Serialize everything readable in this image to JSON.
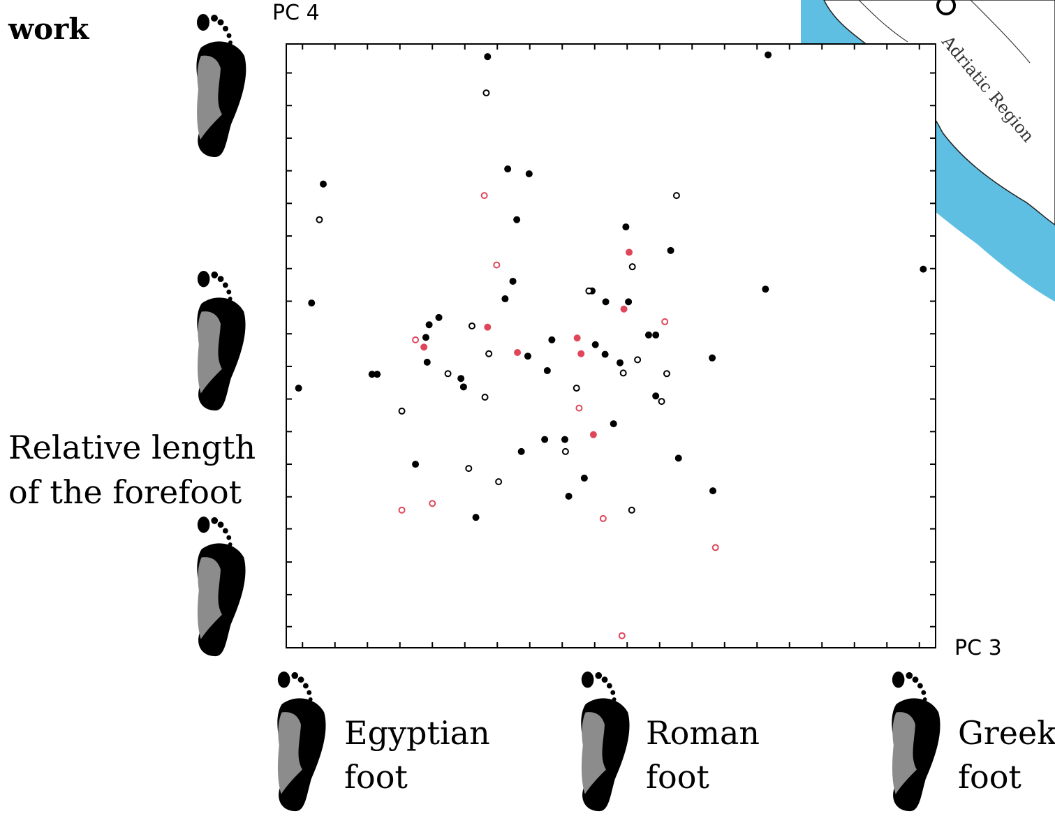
{
  "chart_data": {
    "type": "scatter",
    "heading_fragment": "work",
    "xlabel": "PC 3",
    "ylabel": "PC 4",
    "y_axis_description": [
      "Relative length",
      "of the forefoot"
    ],
    "x_axis_markers": [
      [
        "Egyptian",
        "foot"
      ],
      [
        "Roman",
        "foot"
      ],
      [
        "Greek",
        "foot"
      ]
    ],
    "map_label": "Adriatic Region",
    "xlim": [
      0,
      100
    ],
    "ylim": [
      0,
      100
    ],
    "xticks": [
      2.5,
      7.5,
      12.5,
      17.5,
      22.5,
      27.5,
      32.5,
      37.5,
      42.5,
      47.5,
      52.5,
      57.5,
      62.5,
      67.5,
      72.5,
      77.5,
      82.5,
      87.5,
      92.5,
      97.5
    ],
    "yticks": [
      3.5,
      8.8,
      14.2,
      19.7,
      25.0,
      30.4,
      35.8,
      41.2,
      46.6,
      52.0,
      57.4,
      62.8,
      68.2,
      73.6,
      79.0,
      84.4,
      89.8,
      95.2
    ],
    "series": [
      {
        "color": "#000000",
        "marker": "filled",
        "x": [
          31.0,
          74.2,
          34.1,
          37.4,
          5.7,
          35.5,
          52.3,
          59.2,
          98.1,
          34.9,
          73.8,
          33.7,
          3.9,
          47.1,
          49.2,
          52.7,
          23.5,
          22.0,
          21.5,
          40.9,
          55.8,
          56.9,
          47.6,
          49.1,
          51.4,
          37.2,
          65.6,
          21.7,
          13.2,
          14.0,
          26.9,
          27.3,
          40.2,
          1.9,
          56.9,
          50.4,
          39.8,
          42.9,
          36.2,
          60.4,
          19.9,
          45.9,
          43.5,
          65.7,
          29.2
        ],
        "values": [
          97.9,
          98.2,
          79.3,
          78.5,
          76.8,
          70.9,
          69.7,
          65.8,
          62.7,
          60.7,
          59.4,
          57.8,
          57.1,
          59.1,
          57.3,
          57.3,
          54.7,
          53.5,
          51.4,
          51.0,
          51.8,
          51.8,
          50.2,
          48.6,
          47.2,
          48.3,
          48.0,
          47.3,
          45.3,
          45.3,
          44.6,
          43.2,
          45.9,
          43.0,
          41.7,
          37.1,
          34.5,
          34.5,
          32.5,
          31.4,
          30.4,
          28.1,
          25.1,
          26.0,
          21.6
        ]
      },
      {
        "color": "#000000",
        "marker": "open",
        "x": [
          30.8,
          5.1,
          60.1,
          53.3,
          46.6,
          28.6,
          31.2,
          54.1,
          24.9,
          51.9,
          58.6,
          44.7,
          30.6,
          57.8,
          17.8,
          43.0,
          28.1,
          32.7,
          53.2
        ],
        "values": [
          91.9,
          70.9,
          74.9,
          63.1,
          59.1,
          53.3,
          48.7,
          47.7,
          45.4,
          45.5,
          45.4,
          43.0,
          41.5,
          40.8,
          39.2,
          32.5,
          29.7,
          27.5,
          22.8
        ]
      },
      {
        "color": "#e0465a",
        "marker": "filled",
        "x": [
          52.8,
          52.0,
          31.0,
          21.2,
          35.6,
          44.8,
          45.4,
          47.3
        ],
        "values": [
          65.5,
          56.1,
          53.1,
          49.8,
          48.9,
          51.3,
          48.7,
          35.3
        ]
      },
      {
        "color": "#e0465a",
        "marker": "open",
        "x": [
          30.5,
          32.4,
          19.9,
          58.3,
          45.1,
          17.8,
          22.5,
          48.8,
          66.1,
          51.7
        ],
        "values": [
          74.9,
          63.4,
          51.0,
          54.0,
          39.7,
          22.8,
          23.9,
          21.4,
          16.6,
          2.0
        ]
      }
    ]
  }
}
